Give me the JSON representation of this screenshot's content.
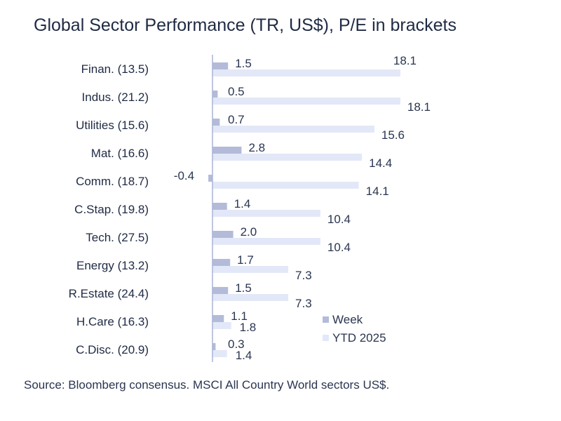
{
  "chart_data": {
    "type": "bar",
    "orientation": "horizontal",
    "title": "Global Sector Performance (TR, US$), P/E in brackets",
    "source": "Source: Bloomberg consensus. MSCI All Country World sectors US$.",
    "categories": [
      "Finan. (13.5)",
      "Indus. (21.2)",
      "Utilities (15.6)",
      "Mat. (16.6)",
      "Comm. (18.7)",
      "C.Stap. (19.8)",
      "Tech. (27.5)",
      "Energy (13.2)",
      "R.Estate (24.4)",
      "H.Care (16.3)",
      "C.Disc. (20.9)"
    ],
    "series": [
      {
        "name": "Week",
        "values": [
          1.5,
          0.5,
          0.7,
          2.8,
          -0.4,
          1.4,
          2.0,
          1.7,
          1.5,
          1.1,
          0.3
        ],
        "labels": [
          "1.5",
          "0.5",
          "0.7",
          "2.8",
          "-0.4",
          "1.4",
          "2.0",
          "1.7",
          "1.5",
          "1.1",
          "0.3"
        ],
        "color": "#b3bbd9"
      },
      {
        "name": "YTD 2025",
        "values": [
          18.1,
          18.1,
          15.6,
          14.4,
          14.1,
          10.4,
          10.4,
          7.3,
          7.3,
          1.8,
          1.4
        ],
        "labels": [
          "18.1",
          "18.1",
          "15.6",
          "14.4",
          "14.1",
          "10.4",
          "10.4",
          "7.3",
          "7.3",
          "1.8",
          "1.4"
        ],
        "color": "#e3e8f8"
      }
    ],
    "legend": "lower-right",
    "axis_color": "#aab4d6",
    "xlim": [
      -0.4,
      18.1
    ],
    "grid": false
  }
}
